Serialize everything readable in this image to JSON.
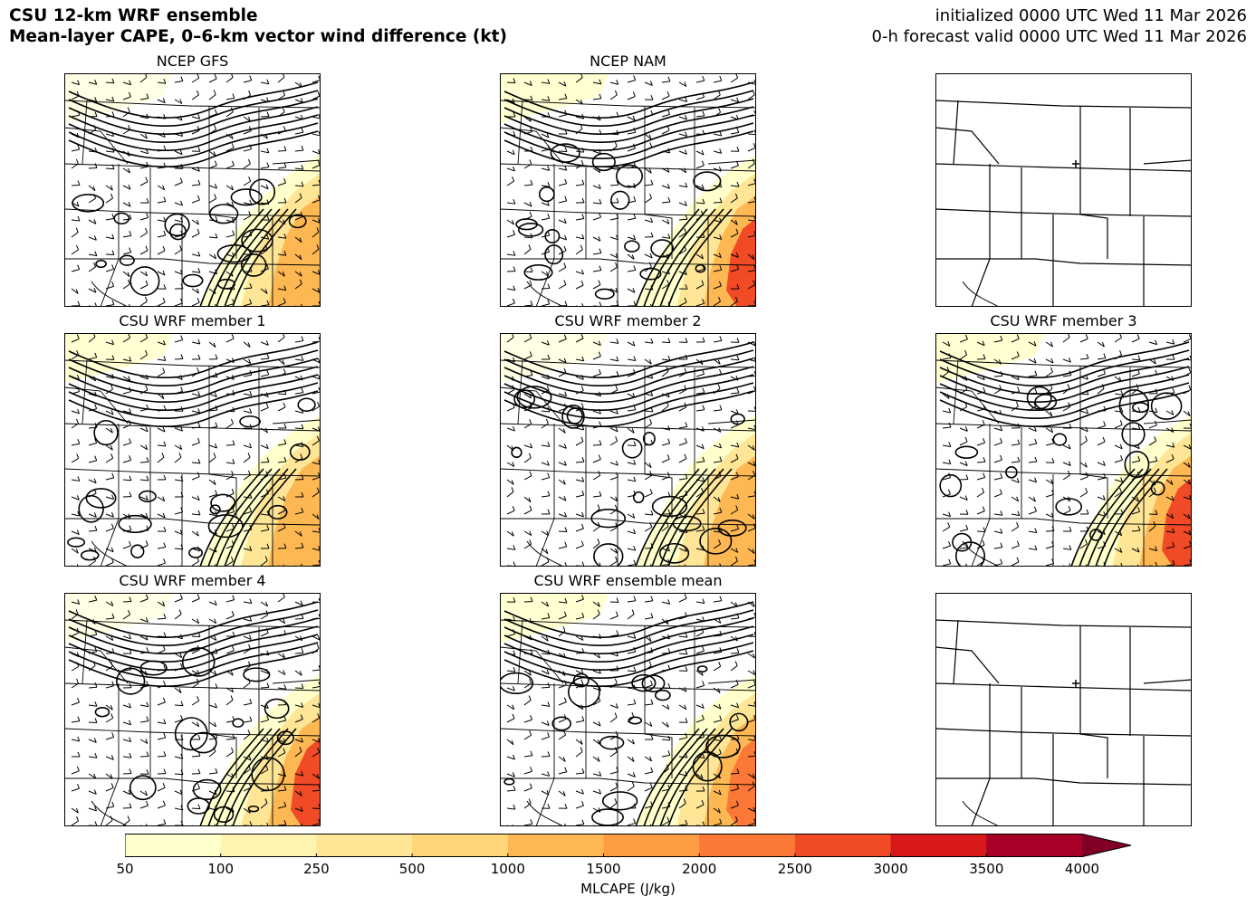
{
  "header": {
    "title_line1": "CSU 12-km WRF ensemble",
    "title_line2": "Mean-layer CAPE, 0–6-km vector wind difference (kt)",
    "init_line": "initialized 0000 UTC Wed 11 Mar 2026",
    "valid_line": "0-h forecast valid 0000 UTC Wed 11 Mar 2026"
  },
  "panels": [
    {
      "title": "NCEP GFS",
      "has_data": true,
      "cape_level": 3
    },
    {
      "title": "NCEP NAM",
      "has_data": true,
      "cape_level": 5
    },
    {
      "title": "",
      "has_data": false,
      "cape_level": 0
    },
    {
      "title": "CSU WRF member 1",
      "has_data": true,
      "cape_level": 3
    },
    {
      "title": "CSU WRF member 2",
      "has_data": true,
      "cape_level": 3
    },
    {
      "title": "CSU WRF member 3",
      "has_data": true,
      "cape_level": 5
    },
    {
      "title": "CSU WRF member 4",
      "has_data": true,
      "cape_level": 5
    },
    {
      "title": "CSU WRF ensemble mean",
      "has_data": true,
      "cape_level": 4
    },
    {
      "title": "",
      "has_data": false,
      "cape_level": 0
    }
  ],
  "colorbar": {
    "label": "MLCAPE (J/kg)",
    "ticks": [
      "50",
      "100",
      "250",
      "500",
      "1000",
      "1500",
      "2000",
      "2500",
      "3000",
      "3500",
      "4000"
    ],
    "colors": [
      "#ffffcc",
      "#fff3b0",
      "#ffe596",
      "#fed678",
      "#feb853",
      "#fd9d43",
      "#fc7837",
      "#f04a26",
      "#d7191c",
      "#a80026"
    ],
    "extend_color": "#800026"
  }
}
